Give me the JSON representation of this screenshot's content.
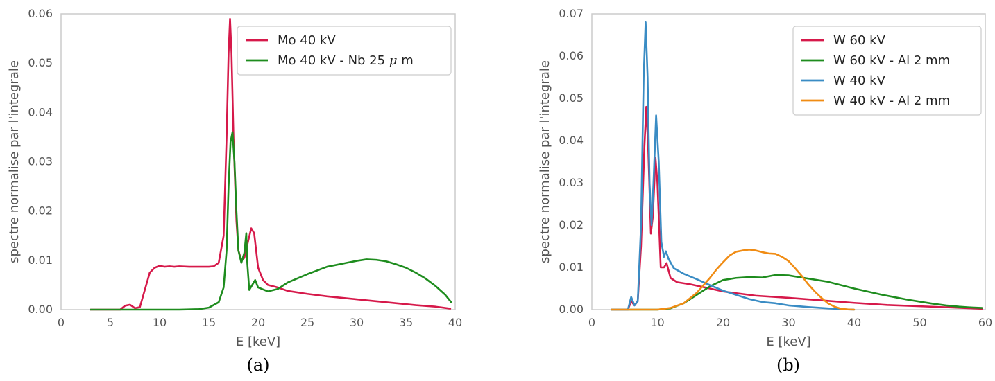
{
  "figure": {
    "captions": [
      "(a)",
      "(b)"
    ]
  },
  "chart_data": [
    {
      "type": "line",
      "xlabel": "E [keV]",
      "ylabel": "spectre normalise par l'integrale",
      "xlim": [
        0,
        40
      ],
      "ylim": [
        0,
        0.06
      ],
      "xticks": [
        0,
        5,
        10,
        15,
        20,
        25,
        30,
        35,
        40
      ],
      "yticks": [
        0.0,
        0.01,
        0.02,
        0.03,
        0.04,
        0.05,
        0.06
      ],
      "ytick_labels": [
        "0.00",
        "0.01",
        "0.02",
        "0.03",
        "0.04",
        "0.05",
        "0.06"
      ],
      "grid": false,
      "legend": "top-right",
      "caption": "(a)",
      "series": [
        {
          "name": "Mo 40 kV",
          "color": "#d6194a",
          "points": [
            [
              3,
              0
            ],
            [
              6,
              0
            ],
            [
              6.5,
              0.0008
            ],
            [
              7,
              0.001
            ],
            [
              7.5,
              0.0003
            ],
            [
              8,
              0.0005
            ],
            [
              8.5,
              0.004
            ],
            [
              9,
              0.0075
            ],
            [
              9.5,
              0.0085
            ],
            [
              10,
              0.0089
            ],
            [
              10.5,
              0.0087
            ],
            [
              11,
              0.0088
            ],
            [
              11.5,
              0.0087
            ],
            [
              12,
              0.0088
            ],
            [
              13,
              0.0087
            ],
            [
              14,
              0.0087
            ],
            [
              15,
              0.0087
            ],
            [
              15.5,
              0.0088
            ],
            [
              16,
              0.0095
            ],
            [
              16.5,
              0.015
            ],
            [
              16.8,
              0.035
            ],
            [
              17,
              0.052
            ],
            [
              17.15,
              0.059
            ],
            [
              17.3,
              0.052
            ],
            [
              17.5,
              0.035
            ],
            [
              17.8,
              0.018
            ],
            [
              18,
              0.012
            ],
            [
              18.3,
              0.01
            ],
            [
              18.6,
              0.0105
            ],
            [
              19,
              0.014
            ],
            [
              19.3,
              0.0165
            ],
            [
              19.6,
              0.0155
            ],
            [
              20,
              0.0085
            ],
            [
              20.5,
              0.006
            ],
            [
              21,
              0.005
            ],
            [
              22,
              0.0045
            ],
            [
              23,
              0.0038
            ],
            [
              25,
              0.0032
            ],
            [
              27,
              0.0027
            ],
            [
              30,
              0.0021
            ],
            [
              33,
              0.0015
            ],
            [
              36,
              0.0009
            ],
            [
              38,
              0.0006
            ],
            [
              39.5,
              0.0002
            ]
          ]
        },
        {
          "name": "Mo 40 kV - Nb 25 $\\mu$ m",
          "color": "#1e8c1e",
          "points": [
            [
              3,
              0
            ],
            [
              12,
              0
            ],
            [
              14,
              0.0001
            ],
            [
              15,
              0.0004
            ],
            [
              16,
              0.0015
            ],
            [
              16.5,
              0.0045
            ],
            [
              16.8,
              0.012
            ],
            [
              17,
              0.025
            ],
            [
              17.2,
              0.034
            ],
            [
              17.4,
              0.036
            ],
            [
              17.6,
              0.03
            ],
            [
              17.8,
              0.02
            ],
            [
              18,
              0.012
            ],
            [
              18.3,
              0.0095
            ],
            [
              18.6,
              0.0115
            ],
            [
              18.8,
              0.0155
            ],
            [
              18.9,
              0.0095
            ],
            [
              19.1,
              0.004
            ],
            [
              19.4,
              0.005
            ],
            [
              19.7,
              0.006
            ],
            [
              20,
              0.0045
            ],
            [
              21,
              0.0037
            ],
            [
              22,
              0.0042
            ],
            [
              23,
              0.0055
            ],
            [
              25,
              0.0072
            ],
            [
              27,
              0.0087
            ],
            [
              29,
              0.0095
            ],
            [
              30,
              0.0099
            ],
            [
              31,
              0.0102
            ],
            [
              32,
              0.0101
            ],
            [
              33,
              0.0098
            ],
            [
              34,
              0.0092
            ],
            [
              35,
              0.0085
            ],
            [
              36,
              0.0075
            ],
            [
              37,
              0.0063
            ],
            [
              38,
              0.0048
            ],
            [
              39,
              0.003
            ],
            [
              39.6,
              0.0015
            ]
          ]
        }
      ]
    },
    {
      "type": "line",
      "xlabel": "E [keV]",
      "ylabel": "spectre normalise par l'integrale",
      "xlim": [
        0,
        60
      ],
      "ylim": [
        0,
        0.07
      ],
      "xticks": [
        0,
        10,
        20,
        30,
        40,
        50,
        60
      ],
      "yticks": [
        0.0,
        0.01,
        0.02,
        0.03,
        0.04,
        0.05,
        0.06,
        0.07
      ],
      "ytick_labels": [
        "0.00",
        "0.01",
        "0.02",
        "0.03",
        "0.04",
        "0.05",
        "0.06",
        "0.07"
      ],
      "grid": false,
      "legend": "top-right",
      "caption": "(b)",
      "series": [
        {
          "name": "W 60 kV",
          "color": "#d6194a",
          "points": [
            [
              3,
              0
            ],
            [
              5.5,
              0
            ],
            [
              6,
              0.002
            ],
            [
              6.5,
              0.001
            ],
            [
              7,
              0.002
            ],
            [
              7.5,
              0.015
            ],
            [
              8,
              0.038
            ],
            [
              8.3,
              0.048
            ],
            [
              8.6,
              0.038
            ],
            [
              9,
              0.018
            ],
            [
              9.3,
              0.022
            ],
            [
              9.7,
              0.036
            ],
            [
              10,
              0.03
            ],
            [
              10.5,
              0.01
            ],
            [
              11,
              0.01
            ],
            [
              11.4,
              0.011
            ],
            [
              12,
              0.0075
            ],
            [
              13,
              0.0065
            ],
            [
              15,
              0.006
            ],
            [
              18,
              0.005
            ],
            [
              20,
              0.0043
            ],
            [
              25,
              0.0033
            ],
            [
              30,
              0.0028
            ],
            [
              35,
              0.0022
            ],
            [
              40,
              0.0016
            ],
            [
              45,
              0.0011
            ],
            [
              50,
              0.0008
            ],
            [
              55,
              0.0005
            ],
            [
              59.5,
              0.0002
            ]
          ]
        },
        {
          "name": "W 60 kV - Al 2 mm",
          "color": "#1e8c1e",
          "points": [
            [
              3,
              0
            ],
            [
              10,
              0
            ],
            [
              12,
              0.0003
            ],
            [
              14,
              0.0015
            ],
            [
              16,
              0.0035
            ],
            [
              18,
              0.0055
            ],
            [
              20,
              0.007
            ],
            [
              22,
              0.0075
            ],
            [
              24,
              0.0077
            ],
            [
              26,
              0.0076
            ],
            [
              28,
              0.0082
            ],
            [
              30,
              0.0081
            ],
            [
              32,
              0.0076
            ],
            [
              34,
              0.0071
            ],
            [
              36,
              0.0066
            ],
            [
              38,
              0.0058
            ],
            [
              40,
              0.005
            ],
            [
              42,
              0.0043
            ],
            [
              44,
              0.0036
            ],
            [
              46,
              0.003
            ],
            [
              48,
              0.0024
            ],
            [
              50,
              0.0019
            ],
            [
              52,
              0.0014
            ],
            [
              54,
              0.001
            ],
            [
              56,
              0.0007
            ],
            [
              58,
              0.0005
            ],
            [
              59.5,
              0.0004
            ]
          ]
        },
        {
          "name": "W 40 kV",
          "color": "#3a8cc4",
          "points": [
            [
              3,
              0
            ],
            [
              5.5,
              0
            ],
            [
              6,
              0.003
            ],
            [
              6.5,
              0.001
            ],
            [
              7,
              0.002
            ],
            [
              7.5,
              0.02
            ],
            [
              7.9,
              0.055
            ],
            [
              8.2,
              0.068
            ],
            [
              8.5,
              0.055
            ],
            [
              8.8,
              0.03
            ],
            [
              9.1,
              0.02
            ],
            [
              9.4,
              0.03
            ],
            [
              9.8,
              0.046
            ],
            [
              10.2,
              0.035
            ],
            [
              10.6,
              0.016
            ],
            [
              11,
              0.0125
            ],
            [
              11.3,
              0.0138
            ],
            [
              11.7,
              0.012
            ],
            [
              12.5,
              0.0098
            ],
            [
              14,
              0.0085
            ],
            [
              16,
              0.0072
            ],
            [
              18,
              0.0058
            ],
            [
              20,
              0.0045
            ],
            [
              22,
              0.0035
            ],
            [
              24,
              0.0025
            ],
            [
              26,
              0.0018
            ],
            [
              28,
              0.0015
            ],
            [
              30,
              0.001
            ],
            [
              33,
              0.0006
            ],
            [
              36,
              0.0003
            ],
            [
              38,
              0.0001
            ],
            [
              40,
              0
            ]
          ]
        },
        {
          "name": "W 40 kV - Al 2 mm",
          "color": "#f08c14",
          "points": [
            [
              3,
              0
            ],
            [
              10,
              0
            ],
            [
              12,
              0.0004
            ],
            [
              14,
              0.0015
            ],
            [
              16,
              0.004
            ],
            [
              18,
              0.0075
            ],
            [
              19,
              0.0095
            ],
            [
              20,
              0.0112
            ],
            [
              21,
              0.0128
            ],
            [
              22,
              0.0137
            ],
            [
              23,
              0.014
            ],
            [
              24,
              0.0142
            ],
            [
              25,
              0.014
            ],
            [
              26,
              0.0136
            ],
            [
              27,
              0.0133
            ],
            [
              28,
              0.0132
            ],
            [
              29,
              0.0125
            ],
            [
              30,
              0.0115
            ],
            [
              31,
              0.0098
            ],
            [
              32,
              0.008
            ],
            [
              33,
              0.006
            ],
            [
              34,
              0.0043
            ],
            [
              35,
              0.0028
            ],
            [
              36,
              0.0015
            ],
            [
              37,
              0.0007
            ],
            [
              38,
              0.0002
            ],
            [
              39,
              5e-05
            ],
            [
              40,
              0
            ]
          ]
        }
      ]
    }
  ]
}
